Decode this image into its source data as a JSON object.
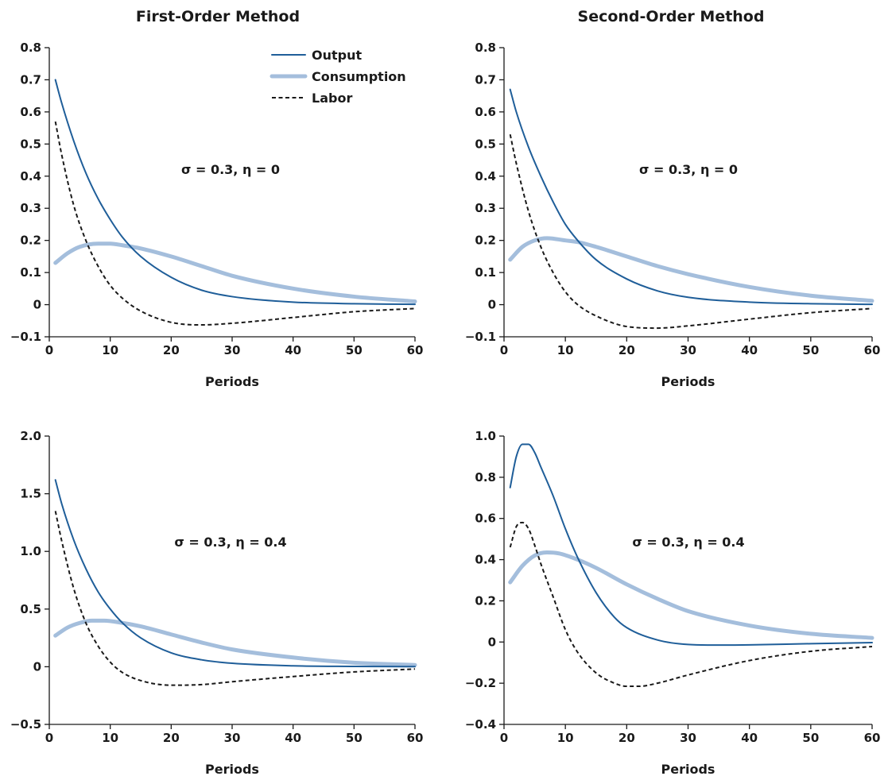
{
  "column_titles": [
    "First-Order Method",
    "Second-Order Method"
  ],
  "legend": [
    {
      "name": "Output",
      "color": "#1f5e99",
      "style": "solid",
      "weight": "thin"
    },
    {
      "name": "Consumption",
      "color": "#a4bedc",
      "style": "solid",
      "weight": "thick"
    },
    {
      "name": "Labor",
      "color": "#1a1a1a",
      "style": "dashed",
      "weight": "thin"
    }
  ],
  "chart_data": [
    {
      "type": "line",
      "column_title": "First-Order Method",
      "annotation": "σ = 0.3,  η = 0",
      "xlabel": "Periods",
      "ylabel": "",
      "xlim": [
        0,
        60
      ],
      "ylim": [
        -0.1,
        0.8
      ],
      "xticks": [
        0,
        10,
        20,
        30,
        40,
        50,
        60
      ],
      "xtick_labels": [
        "0",
        "10",
        "20",
        "30",
        "40",
        "50",
        "60"
      ],
      "yticks": [
        -0.1,
        0,
        0.1,
        0.2,
        0.3,
        0.4,
        0.5,
        0.6,
        0.7,
        0.8
      ],
      "ytick_labels": [
        "−0.1",
        "0",
        "0.1",
        "0.2",
        "0.3",
        "0.4",
        "0.5",
        "0.6",
        "0.7",
        "0.8"
      ],
      "legend_position": "top-right",
      "series": [
        {
          "name": "Output",
          "x": [
            1,
            2,
            4,
            6,
            8,
            10,
            12,
            15,
            20,
            25,
            30,
            40,
            50,
            60
          ],
          "y": [
            0.7,
            0.63,
            0.51,
            0.41,
            0.33,
            0.265,
            0.21,
            0.15,
            0.085,
            0.045,
            0.025,
            0.008,
            0.003,
            0.001
          ]
        },
        {
          "name": "Consumption",
          "x": [
            1,
            3,
            5,
            8,
            10,
            12,
            15,
            20,
            25,
            30,
            40,
            50,
            60
          ],
          "y": [
            0.13,
            0.16,
            0.18,
            0.19,
            0.19,
            0.185,
            0.175,
            0.15,
            0.12,
            0.09,
            0.05,
            0.025,
            0.01
          ]
        },
        {
          "name": "Labor",
          "x": [
            1,
            2,
            4,
            6,
            8,
            10,
            12,
            15,
            20,
            25,
            30,
            40,
            50,
            60
          ],
          "y": [
            0.57,
            0.47,
            0.31,
            0.2,
            0.12,
            0.06,
            0.02,
            -0.02,
            -0.055,
            -0.063,
            -0.058,
            -0.04,
            -0.022,
            -0.012
          ]
        }
      ]
    },
    {
      "type": "line",
      "column_title": "Second-Order Method",
      "annotation": "σ = 0.3,  η = 0",
      "xlabel": "Periods",
      "ylabel": "",
      "xlim": [
        0,
        60
      ],
      "ylim": [
        -0.1,
        0.8
      ],
      "xticks": [
        0,
        10,
        20,
        30,
        40,
        50,
        60
      ],
      "xtick_labels": [
        "0",
        "10",
        "20",
        "30",
        "40",
        "50",
        "60"
      ],
      "yticks": [
        -0.1,
        0,
        0.1,
        0.2,
        0.3,
        0.4,
        0.5,
        0.6,
        0.7,
        0.8
      ],
      "ytick_labels": [
        "−0.1",
        "0",
        "0.1",
        "0.2",
        "0.3",
        "0.4",
        "0.5",
        "0.6",
        "0.7",
        "0.8"
      ],
      "series": [
        {
          "name": "Output",
          "x": [
            1,
            2,
            4,
            6,
            8,
            10,
            12,
            15,
            20,
            25,
            30,
            40,
            50,
            60
          ],
          "y": [
            0.67,
            0.6,
            0.49,
            0.4,
            0.32,
            0.25,
            0.2,
            0.14,
            0.08,
            0.043,
            0.023,
            0.008,
            0.003,
            0.001
          ]
        },
        {
          "name": "Consumption",
          "x": [
            1,
            3,
            5,
            7,
            10,
            12,
            15,
            20,
            25,
            30,
            40,
            50,
            60
          ],
          "y": [
            0.14,
            0.18,
            0.2,
            0.207,
            0.2,
            0.195,
            0.18,
            0.15,
            0.12,
            0.095,
            0.055,
            0.028,
            0.012
          ]
        },
        {
          "name": "Labor",
          "x": [
            1,
            2,
            4,
            6,
            8,
            10,
            12,
            15,
            20,
            25,
            30,
            40,
            50,
            60
          ],
          "y": [
            0.53,
            0.44,
            0.29,
            0.18,
            0.1,
            0.04,
            0.0,
            -0.035,
            -0.068,
            -0.073,
            -0.066,
            -0.045,
            -0.025,
            -0.012
          ]
        }
      ]
    },
    {
      "type": "line",
      "annotation": "σ = 0.3,  η = 0.4",
      "xlabel": "Periods",
      "ylabel": "",
      "xlim": [
        0,
        60
      ],
      "ylim": [
        -0.5,
        2.0
      ],
      "xticks": [
        0,
        10,
        20,
        30,
        40,
        50,
        60
      ],
      "xtick_labels": [
        "0",
        "10",
        "20",
        "30",
        "40",
        "50",
        "60"
      ],
      "yticks": [
        -0.5,
        0,
        0.5,
        1.0,
        1.5,
        2.0
      ],
      "ytick_labels": [
        "−0.5",
        "0",
        "0.5",
        "1.0",
        "1.5",
        "2.0"
      ],
      "series": [
        {
          "name": "Output",
          "x": [
            1,
            2,
            4,
            6,
            8,
            10,
            12,
            15,
            20,
            25,
            30,
            40,
            50,
            60
          ],
          "y": [
            1.62,
            1.42,
            1.1,
            0.85,
            0.65,
            0.5,
            0.38,
            0.25,
            0.12,
            0.06,
            0.03,
            0.008,
            0.003,
            0.001
          ]
        },
        {
          "name": "Consumption",
          "x": [
            1,
            3,
            5,
            7,
            9,
            12,
            15,
            20,
            25,
            30,
            40,
            50,
            60
          ],
          "y": [
            0.27,
            0.34,
            0.38,
            0.4,
            0.4,
            0.38,
            0.35,
            0.28,
            0.21,
            0.15,
            0.08,
            0.035,
            0.015
          ]
        },
        {
          "name": "Labor",
          "x": [
            1,
            2,
            4,
            6,
            8,
            10,
            12,
            15,
            20,
            25,
            30,
            40,
            50,
            60
          ],
          "y": [
            1.35,
            1.1,
            0.68,
            0.38,
            0.18,
            0.04,
            -0.05,
            -0.12,
            -0.16,
            -0.155,
            -0.13,
            -0.085,
            -0.045,
            -0.02
          ]
        }
      ]
    },
    {
      "type": "line",
      "annotation": "σ = 0.3,  η = 0.4",
      "xlabel": "Periods",
      "ylabel": "",
      "xlim": [
        0,
        60
      ],
      "ylim": [
        -0.4,
        1.0
      ],
      "xticks": [
        0,
        10,
        20,
        30,
        40,
        50,
        60
      ],
      "xtick_labels": [
        "0",
        "10",
        "20",
        "30",
        "40",
        "50",
        "60"
      ],
      "yticks": [
        -0.4,
        -0.2,
        0,
        0.2,
        0.4,
        0.6,
        0.8,
        1.0
      ],
      "ytick_labels": [
        "−0.4",
        "−0.2",
        "0",
        "0.2",
        "0.4",
        "0.6",
        "0.8",
        "1.0"
      ],
      "series": [
        {
          "name": "Output",
          "x": [
            1,
            2,
            3,
            4,
            5,
            6,
            8,
            10,
            12,
            15,
            18,
            20,
            25,
            30,
            35,
            40,
            50,
            60
          ],
          "y": [
            0.75,
            0.9,
            0.96,
            0.96,
            0.92,
            0.85,
            0.71,
            0.55,
            0.41,
            0.24,
            0.12,
            0.07,
            0.01,
            -0.012,
            -0.015,
            -0.014,
            -0.008,
            -0.003
          ]
        },
        {
          "name": "Consumption",
          "x": [
            1,
            3,
            5,
            7,
            9,
            12,
            15,
            20,
            25,
            30,
            40,
            50,
            60
          ],
          "y": [
            0.29,
            0.37,
            0.42,
            0.435,
            0.43,
            0.4,
            0.36,
            0.28,
            0.21,
            0.15,
            0.08,
            0.04,
            0.02
          ]
        },
        {
          "name": "Labor",
          "x": [
            1,
            2,
            3,
            4,
            5,
            6,
            8,
            10,
            12,
            15,
            18,
            20,
            22,
            25,
            30,
            40,
            50,
            60
          ],
          "y": [
            0.46,
            0.56,
            0.58,
            0.55,
            0.47,
            0.38,
            0.22,
            0.06,
            -0.05,
            -0.15,
            -0.2,
            -0.215,
            -0.215,
            -0.2,
            -0.16,
            -0.09,
            -0.045,
            -0.022
          ]
        }
      ]
    }
  ]
}
